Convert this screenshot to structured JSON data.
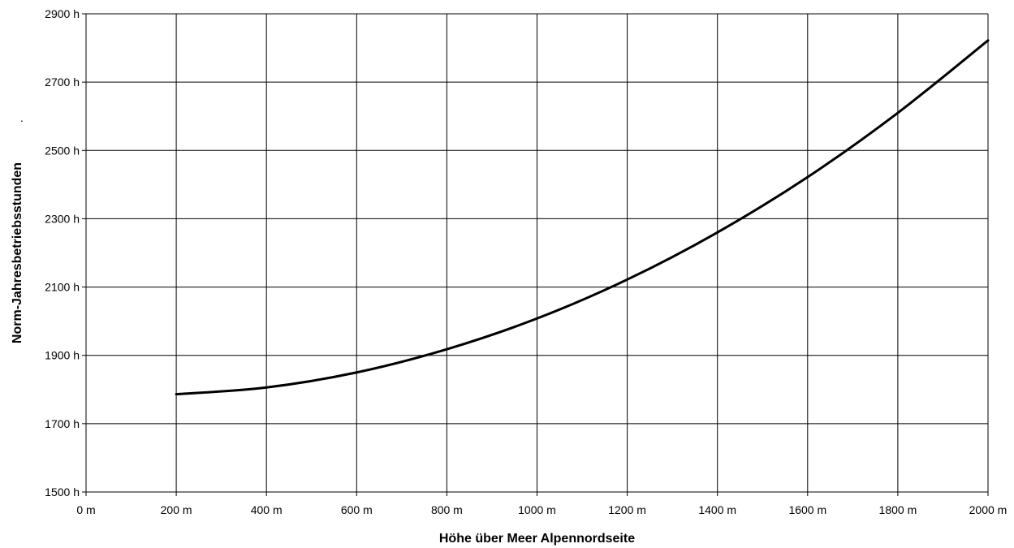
{
  "chart_data": {
    "type": "line",
    "title": "",
    "xlabel": "Höhe über Meer Alpennordseite",
    "ylabel": "Norm-Jahresbetriebsstunden",
    "side_marker": ".",
    "xlim": [
      0,
      2000
    ],
    "ylim": [
      1500,
      2900
    ],
    "x_ticks": [
      0,
      200,
      400,
      600,
      800,
      1000,
      1200,
      1400,
      1600,
      1800,
      2000
    ],
    "x_tick_labels": [
      "0 m",
      "200 m",
      "400 m",
      "600 m",
      "800 m",
      "1000 m",
      "1200 m",
      "1400 m",
      "1600 m",
      "1800 m",
      "2000 m"
    ],
    "y_ticks": [
      1500,
      1700,
      1900,
      2100,
      2300,
      2500,
      2700,
      2900
    ],
    "y_tick_labels": [
      "1500 h",
      "1700 h",
      "1900 h",
      "2100 h",
      "2300 h",
      "2500 h",
      "2700 h",
      "2900 h"
    ],
    "grid": true,
    "legend": "none",
    "series": [
      {
        "x": [
          200,
          400,
          600,
          800,
          1000,
          1200,
          1400,
          1600,
          1800,
          2000
        ],
        "y": [
          1786,
          1806,
          1850,
          1918,
          2008,
          2122,
          2260,
          2422,
          2610,
          2822
        ],
        "color": "#000000"
      }
    ]
  }
}
